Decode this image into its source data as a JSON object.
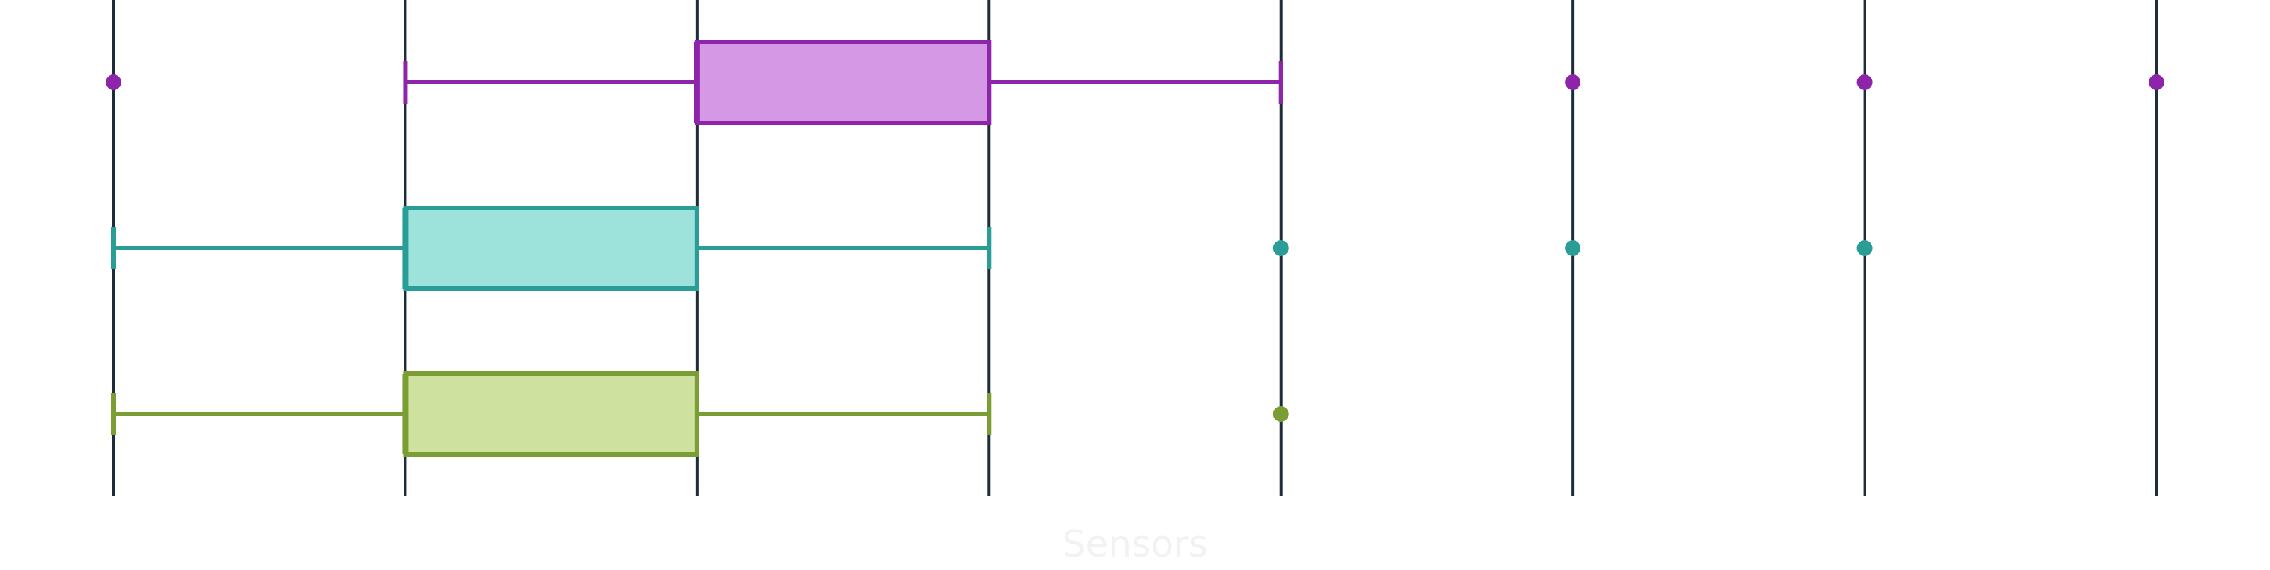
{
  "chart_data": {
    "type": "box",
    "orientation": "horizontal",
    "xlabel": "Sensors",
    "ylabel": "",
    "title": "",
    "xlim": [
      0,
      7
    ],
    "x_gridlines": [
      0,
      1,
      2,
      3,
      4,
      5,
      6,
      7
    ],
    "x_tick_labels_visible": false,
    "grid": true,
    "legend": "none",
    "series": [
      {
        "color": "#8e24aa",
        "fill": "#d598e4",
        "whisker_low": 1,
        "q1": 2,
        "median": 2,
        "q3": 3,
        "whisker_high": 4,
        "outliers": [
          0,
          5,
          6,
          7
        ]
      },
      {
        "color": "#2a9d96",
        "fill": "#9de3dc",
        "whisker_low": 0,
        "q1": 1,
        "median": 1,
        "q3": 2,
        "whisker_high": 3,
        "outliers": [
          4,
          5,
          6
        ]
      },
      {
        "color": "#7b9e34",
        "fill": "#cfe19e",
        "whisker_low": 0,
        "q1": 1,
        "median": 1,
        "q3": 2,
        "whisker_high": 3,
        "outliers": [
          4
        ]
      }
    ],
    "gridline_color": "#1f2d3a"
  }
}
